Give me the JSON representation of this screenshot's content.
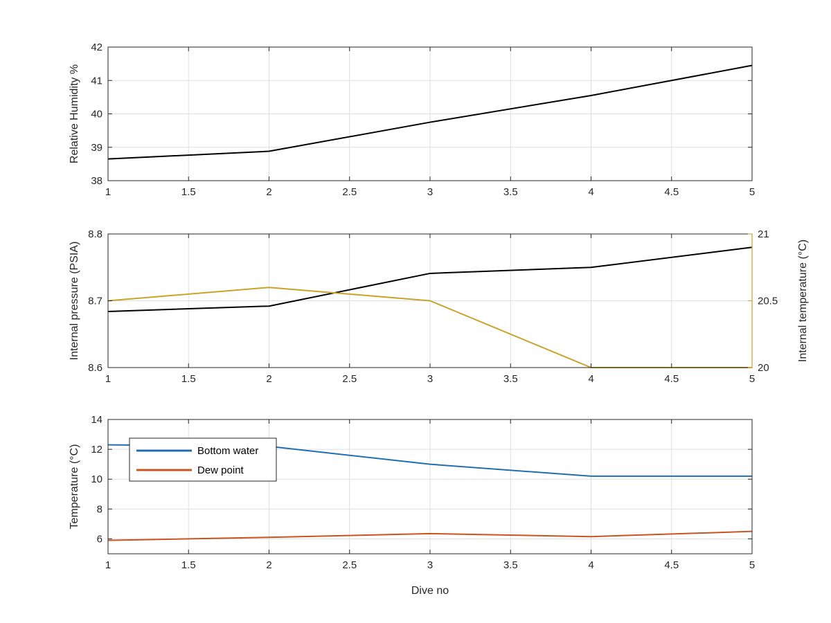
{
  "chart_data": [
    {
      "type": "line",
      "ylabel": "Relative Humidity %",
      "xlabel": "",
      "xlim": [
        1,
        5
      ],
      "ylim": [
        38,
        42
      ],
      "xticks": [
        "1",
        "1.5",
        "2",
        "2.5",
        "3",
        "3.5",
        "4",
        "4.5",
        "5"
      ],
      "yticks": [
        "38",
        "39",
        "40",
        "41",
        "42"
      ],
      "grid": true,
      "series": [
        {
          "color": "#000000",
          "x": [
            1,
            2,
            3,
            4,
            5
          ],
          "y": [
            38.65,
            38.88,
            39.75,
            40.55,
            41.45
          ]
        }
      ]
    },
    {
      "type": "line",
      "ylabel": "Internal pressure (PSIA)",
      "ylabel_right": "Internal temperature (°C)",
      "xlabel": "",
      "xlim": [
        1,
        5
      ],
      "ylim": [
        8.6,
        8.8
      ],
      "ylim_right": [
        20,
        21
      ],
      "xticks": [
        "1",
        "1.5",
        "2",
        "2.5",
        "3",
        "3.5",
        "4",
        "4.5",
        "5"
      ],
      "yticks": [
        "8.6",
        "8.7",
        "8.8"
      ],
      "yticks_right": [
        "20",
        "20.5",
        "21"
      ],
      "right_axis_color": "#c9a227",
      "grid": true,
      "series": [
        {
          "axis": "left",
          "color": "#000000",
          "x": [
            1,
            2,
            3,
            4,
            5
          ],
          "y": [
            8.684,
            8.692,
            8.741,
            8.75,
            8.78
          ]
        },
        {
          "axis": "right",
          "color": "#c9a227",
          "x": [
            1,
            2,
            3,
            4,
            5
          ],
          "y": [
            20.5,
            20.6,
            20.5,
            20.0,
            20.0
          ]
        }
      ]
    },
    {
      "type": "line",
      "ylabel": "Temperature (°C)",
      "xlabel": "Dive no",
      "xlim": [
        1,
        5
      ],
      "ylim": [
        5,
        14
      ],
      "xticks": [
        "1",
        "1.5",
        "2",
        "2.5",
        "3",
        "3.5",
        "4",
        "4.5",
        "5"
      ],
      "yticks": [
        "6",
        "8",
        "10",
        "12",
        "14"
      ],
      "ytick_values": [
        6,
        8,
        10,
        12,
        14
      ],
      "grid": true,
      "legend": "top-left",
      "series": [
        {
          "name": "Bottom water",
          "color": "#1f6fb0",
          "x": [
            1,
            2,
            3,
            4,
            5
          ],
          "y": [
            12.3,
            12.2,
            11.0,
            10.2,
            10.2
          ]
        },
        {
          "name": "Dew point",
          "color": "#c8541f",
          "x": [
            1,
            2,
            3,
            4,
            5
          ],
          "y": [
            5.9,
            6.1,
            6.35,
            6.15,
            6.5
          ]
        }
      ]
    }
  ]
}
